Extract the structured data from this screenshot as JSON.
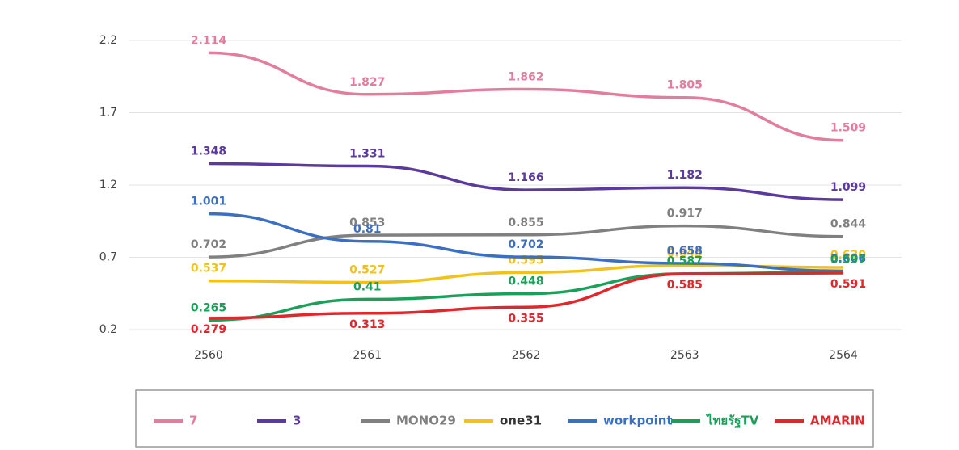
{
  "chart_data": {
    "type": "line",
    "categories": [
      "2560",
      "2561",
      "2562",
      "2563",
      "2564"
    ],
    "series": [
      {
        "name": "7",
        "color": "#e27d9d",
        "values": [
          2.114,
          1.827,
          1.862,
          1.805,
          1.509
        ]
      },
      {
        "name": "3",
        "color": "#5a3a9e",
        "values": [
          1.348,
          1.331,
          1.166,
          1.182,
          1.099
        ]
      },
      {
        "name": "MONO29",
        "color": "#808080",
        "values": [
          0.702,
          0.853,
          0.855,
          0.917,
          0.844
        ]
      },
      {
        "name": "one31",
        "color": "#f2c21b",
        "values": [
          0.537,
          0.527,
          0.595,
          0.645,
          0.63
        ],
        "value_labels": [
          "0.537",
          "0.527",
          "0.595",
          "0.645",
          "0.630"
        ]
      },
      {
        "name": "workpoint",
        "color": "#3b6fc2",
        "values": [
          1.001,
          0.81,
          0.702,
          0.658,
          0.606
        ]
      },
      {
        "name": "ไทยรัฐTV",
        "color": "#1ba05a",
        "values": [
          0.265,
          0.41,
          0.448,
          0.587,
          0.597
        ]
      },
      {
        "name": "AMARIN",
        "color": "#e1262c",
        "values": [
          0.279,
          0.313,
          0.355,
          0.585,
          0.591
        ]
      }
    ],
    "ylim": [
      0.2,
      2.2
    ],
    "yticks": [
      0.2,
      0.7,
      1.2,
      1.7,
      2.2
    ],
    "grid": true,
    "legend": "bottom"
  }
}
